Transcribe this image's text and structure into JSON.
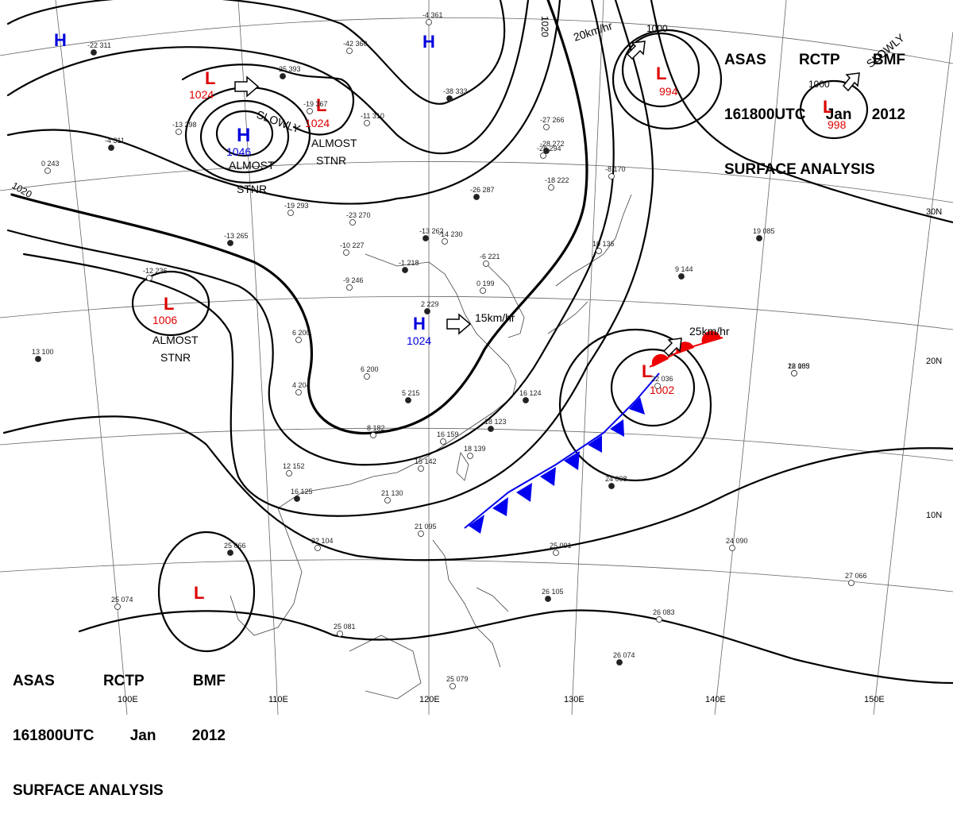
{
  "header": {
    "agency": "ASAS",
    "station": "RCTP",
    "office": "BMF",
    "valid_time": "161800UTC",
    "month": "Jan",
    "year": "2012",
    "title": "SURFACE ANALYSIS"
  },
  "lon_labels": [
    "100E",
    "110E",
    "120E",
    "130E",
    "140E",
    "150E"
  ],
  "lat_labels": [
    "30N",
    "20N",
    "10N"
  ],
  "isobar_labels": [
    "1020",
    "1020",
    "1000",
    "1000"
  ],
  "pressure_systems": [
    {
      "type": "H",
      "value": "",
      "color": "#0000dd"
    },
    {
      "type": "H",
      "value": "",
      "color": "#0000dd"
    },
    {
      "type": "H",
      "value": "1046",
      "color": "#0000dd",
      "note": "SLOWLY",
      "note2": "ALMOST STNR"
    },
    {
      "type": "H",
      "value": "1024",
      "color": "#0000dd",
      "note": "15km/hr"
    },
    {
      "type": "L",
      "value": "1024",
      "color": "#dd0000"
    },
    {
      "type": "L",
      "value": "1024",
      "color": "#dd0000",
      "note": "ALMOST STNR"
    },
    {
      "type": "L",
      "value": "1006",
      "color": "#dd0000",
      "note": "ALMOST STNR"
    },
    {
      "type": "L",
      "value": "994",
      "color": "#dd0000",
      "note": "20km/hr"
    },
    {
      "type": "L",
      "value": "998",
      "color": "#dd0000",
      "note": "SLOWLY"
    },
    {
      "type": "L",
      "value": "1002",
      "color": "#dd0000",
      "note": "25km/hr"
    },
    {
      "type": "L",
      "value": "",
      "color": "#dd0000"
    }
  ],
  "text_notes": {
    "almost": "ALMOST",
    "stnr": "STNR",
    "slowly": "SLOWLY",
    "speed_15": "15km/hr",
    "speed_20": "20km/hr",
    "speed_25": "25km/hr"
  },
  "station_plots": [
    "-22 311",
    "-42 360",
    "-4 361",
    "-25 393",
    "-19 367",
    "-13 298",
    "-4 311",
    "0 243",
    "-11 310",
    "-38 333",
    "-27 266",
    "-28 294",
    "-28 272",
    "-18 222",
    "-8 170",
    "-26 287",
    "-23 270",
    "-19 293",
    "-13 262",
    "-14 230",
    "-10 227",
    "-1 218",
    "-6 221",
    "0 199",
    "2 229",
    "-9 246",
    "-12 236",
    "-13 265",
    "6 200",
    "4 204",
    "5 215",
    "6 200",
    "8 182",
    "16 124",
    "16 159",
    "18 139",
    "18 123",
    "15 142",
    "12 152",
    "16 125",
    "21 130",
    "22 104",
    "25 066",
    "25 074",
    "25 081",
    "26 105",
    "25 091",
    "26 083",
    "24 098",
    "24 090",
    "27 066",
    "26 074",
    "25 079",
    "21 095",
    "19 085",
    "18 083",
    "22 105",
    "9 144",
    "10 136",
    "22 036",
    "13 100"
  ],
  "colors": {
    "isobar": "#000000",
    "high": "#0000dd",
    "low": "#dd0000",
    "cold_front": "#0000ee",
    "warm_front": "#ee0000",
    "grid": "#555555",
    "coast": "#333333"
  }
}
